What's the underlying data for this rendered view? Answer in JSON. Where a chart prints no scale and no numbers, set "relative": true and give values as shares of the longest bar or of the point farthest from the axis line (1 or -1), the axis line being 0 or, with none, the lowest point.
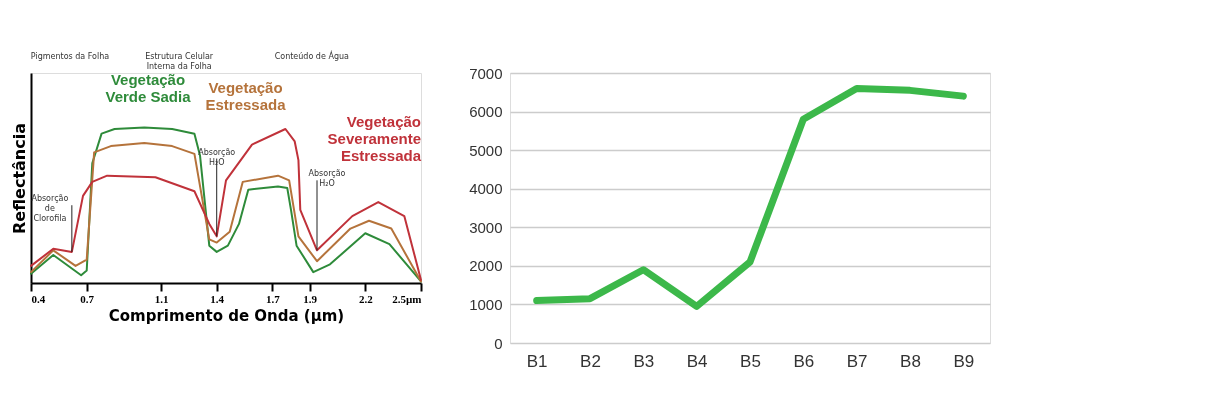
{
  "chart_data": [
    {
      "type": "line",
      "relative": true,
      "xlabel": "Comprimento de Onda (µm)",
      "ylabel": "Reflectância",
      "xlim": [
        0.4,
        2.5
      ],
      "xticks": [
        0.4,
        0.7,
        1.1,
        1.4,
        1.7,
        1.9,
        2.2,
        {
          "value": 2.5,
          "label": "2.5µm"
        }
      ],
      "tick_labels": "x",
      "grid": false,
      "legend": false,
      "line_style": "solid",
      "series": [
        {
          "name": "Vegetação Verde Sadia",
          "color": "#2e8b3a",
          "x": [
            0.4,
            0.52,
            0.67,
            0.7,
            0.73,
            0.78,
            0.85,
            1.01,
            1.16,
            1.28,
            1.31,
            1.36,
            1.4,
            1.46,
            1.52,
            1.57,
            1.73,
            1.78,
            1.8,
            1.83,
            1.92,
            2.01,
            2.2,
            2.33,
            2.5
          ],
          "values": [
            0.06,
            0.18,
            0.05,
            0.08,
            0.77,
            0.96,
            0.99,
            1.0,
            0.99,
            0.96,
            0.82,
            0.24,
            0.2,
            0.24,
            0.38,
            0.6,
            0.62,
            0.61,
            0.47,
            0.24,
            0.07,
            0.12,
            0.32,
            0.25,
            0.01
          ]
        },
        {
          "name": "Vegetação Estressada",
          "color": "#b5733b",
          "x": [
            0.4,
            0.52,
            0.64,
            0.7,
            0.74,
            0.83,
            1.01,
            1.16,
            1.28,
            1.36,
            1.4,
            1.47,
            1.54,
            1.73,
            1.79,
            1.84,
            1.94,
            2.12,
            2.22,
            2.34,
            2.5
          ],
          "values": [
            0.07,
            0.21,
            0.11,
            0.15,
            0.84,
            0.88,
            0.9,
            0.88,
            0.83,
            0.28,
            0.26,
            0.33,
            0.65,
            0.69,
            0.66,
            0.3,
            0.14,
            0.35,
            0.4,
            0.35,
            0.01
          ]
        },
        {
          "name": "Vegetação Severamente Estressada",
          "color": "#c0323a",
          "x": [
            0.4,
            0.52,
            0.62,
            0.68,
            0.73,
            0.81,
            1.07,
            1.28,
            1.36,
            1.4,
            1.45,
            1.59,
            1.77,
            1.82,
            1.84,
            1.85,
            1.94,
            2.13,
            2.27,
            2.41,
            2.5
          ],
          "values": [
            0.11,
            0.22,
            0.2,
            0.56,
            0.65,
            0.69,
            0.68,
            0.59,
            0.38,
            0.3,
            0.66,
            0.89,
            0.99,
            0.91,
            0.79,
            0.47,
            0.21,
            0.43,
            0.52,
            0.43,
            0.02
          ]
        }
      ],
      "annotations": [
        {
          "text": "Absorção de Clorofila",
          "x": 0.62,
          "y": 0.2
        },
        {
          "text": "Absorção H₂O",
          "x": 1.4,
          "y": 0.3
        },
        {
          "text": "Absorção H₂O",
          "x": 1.94,
          "y": 0.21
        },
        "Pigmentos da Folha",
        "Estrutura Celular Interna da Folha",
        "Conteúdo de Água"
      ]
    },
    {
      "type": "line",
      "categories": [
        "B1",
        "B2",
        "B3",
        "B4",
        "B5",
        "B6",
        "B7",
        "B8",
        "B9"
      ],
      "ylim": [
        0,
        7000
      ],
      "yticks": [
        0,
        1000,
        2000,
        3000,
        4000,
        5000,
        6000,
        7000
      ],
      "grid": "y",
      "legend": false,
      "series": [
        {
          "color": "#3cb84a",
          "values": [
            1100,
            1150,
            1900,
            950,
            2100,
            5800,
            6600,
            6550,
            6400
          ]
        }
      ]
    }
  ]
}
